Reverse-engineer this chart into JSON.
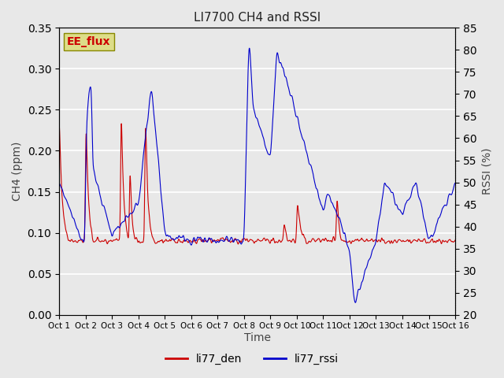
{
  "title": "LI7700 CH4 and RSSI",
  "xlabel": "Time",
  "ylabel_left": "CH4 (ppm)",
  "ylabel_right": "RSSI (%)",
  "site_label": "EE_flux",
  "ylim_left": [
    0.0,
    0.35
  ],
  "ylim_right": [
    20,
    85
  ],
  "yticks_left": [
    0.0,
    0.05,
    0.1,
    0.15,
    0.2,
    0.25,
    0.3,
    0.35
  ],
  "yticks_right": [
    20,
    25,
    30,
    35,
    40,
    45,
    50,
    55,
    60,
    65,
    70,
    75,
    80,
    85
  ],
  "xtick_labels": [
    "Oct 1",
    "Oct 2",
    "Oct 3",
    "Oct 4",
    "Oct 5",
    "Oct 6",
    "Oct 7",
    "Oct 8",
    "Oct 9",
    "Oct 10",
    "Oct 11",
    "Oct 12",
    "Oct 13",
    "Oct 14",
    "Oct 15",
    "Oct 16"
  ],
  "color_ch4": "#cc0000",
  "color_rssi": "#0000cc",
  "background_color": "#e8e8e8",
  "plot_bg_color": "#e8e8e8",
  "grid_color": "#ffffff",
  "site_box_color": "#cccc00",
  "site_text_color": "#cc0000",
  "legend_labels": [
    "li77_den",
    "li77_rssi"
  ]
}
